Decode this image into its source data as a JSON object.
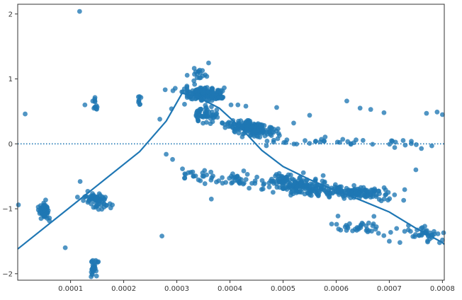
{
  "chart_data": {
    "type": "scatter",
    "title": "",
    "xlabel": "",
    "ylabel": "",
    "xlim": [
      5e-07,
      0.0008035
    ],
    "ylim": [
      -2.1,
      2.15
    ],
    "x_ticks": [
      0.0001,
      0.0002,
      0.0003,
      0.0004,
      0.0005,
      0.0006,
      0.0007,
      0.0008
    ],
    "x_tick_labels": [
      "0.0001",
      "0.0002",
      "0.0003",
      "0.0004",
      "0.0005",
      "0.0006",
      "0.0007",
      "0.0008"
    ],
    "y_ticks": [
      -2,
      -1,
      0,
      1,
      2
    ],
    "y_tick_labels": [
      "−2",
      "−1",
      "0",
      "1",
      "2"
    ],
    "grid": false,
    "legend": "none",
    "colors": {
      "points": "#1f77b4",
      "line": "#1f77b4",
      "reference": "#1f77b4",
      "axes": "#333333"
    },
    "reference_line": {
      "y": 0,
      "style": "dotted"
    },
    "fit_line": {
      "x": [
        0.0,
        0.00023,
        0.00028,
        0.00031,
        0.00034,
        0.00038,
        0.00042,
        0.00046,
        0.0005,
        0.00055,
        0.0006,
        0.00065,
        0.0007,
        0.00075,
        0.0008,
        0.0008035
      ],
      "y": [
        -1.62,
        -0.12,
        0.35,
        0.78,
        0.72,
        0.55,
        0.25,
        -0.1,
        -0.35,
        -0.55,
        -0.72,
        -0.88,
        -1.05,
        -1.3,
        -1.52,
        -1.55
      ]
    },
    "clusters": [
      {
        "cx": 5e-05,
        "cy": -1.05,
        "sx": 5e-06,
        "sy": 0.08,
        "n": 60,
        "tilt": -4000
      },
      {
        "cx": 0.00015,
        "cy": -0.88,
        "sx": 1.1e-05,
        "sy": 0.06,
        "n": 70,
        "tilt": -1800
      },
      {
        "cx": 0.000145,
        "cy": -1.9,
        "sx": 3.5e-06,
        "sy": 0.07,
        "n": 30,
        "tilt": 0
      },
      {
        "cx": 0.000146,
        "cy": 0.58,
        "sx": 3e-06,
        "sy": 0.05,
        "n": 12,
        "tilt": 0
      },
      {
        "cx": 0.00023,
        "cy": 0.68,
        "sx": 2e-06,
        "sy": 0.04,
        "n": 8,
        "tilt": 0
      },
      {
        "cx": 0.00035,
        "cy": 0.76,
        "sx": 1.8e-05,
        "sy": 0.05,
        "n": 160,
        "tilt": 0
      },
      {
        "cx": 0.000355,
        "cy": 0.46,
        "sx": 1.2e-05,
        "sy": 0.07,
        "n": 55,
        "tilt": 0
      },
      {
        "cx": 0.00034,
        "cy": 1.05,
        "sx": 8e-06,
        "sy": 0.07,
        "n": 18,
        "tilt": 0
      },
      {
        "cx": 0.00044,
        "cy": 0.24,
        "sx": 2.5e-05,
        "sy": 0.06,
        "n": 170,
        "tilt": -1000
      },
      {
        "cx": 0.00052,
        "cy": -0.62,
        "sx": 2.5e-05,
        "sy": 0.06,
        "n": 160,
        "tilt": -800
      },
      {
        "cx": 0.00063,
        "cy": -0.75,
        "sx": 4e-05,
        "sy": 0.05,
        "n": 160,
        "tilt": -400
      },
      {
        "cx": 0.00039,
        "cy": -0.52,
        "sx": 4.5e-05,
        "sy": 0.06,
        "n": 60,
        "tilt": -600
      },
      {
        "cx": 0.00066,
        "cy": -1.28,
        "sx": 4e-05,
        "sy": 0.06,
        "n": 40,
        "tilt": -500
      },
      {
        "cx": 0.00077,
        "cy": -1.38,
        "sx": 1.4e-05,
        "sy": 0.06,
        "n": 35,
        "tilt": -1000
      },
      {
        "cx": 0.00061,
        "cy": 0.03,
        "sx": 7e-05,
        "sy": 0.04,
        "n": 35,
        "tilt": 0
      }
    ],
    "outliers": [
      {
        "x": 0.000117,
        "y": 2.04
      },
      {
        "x": 1.45e-05,
        "y": 0.46
      },
      {
        "x": 5e-07,
        "y": -0.94
      },
      {
        "x": 9e-05,
        "y": -1.6
      },
      {
        "x": 0.000118,
        "y": -0.58
      },
      {
        "x": 0.000127,
        "y": 0.6
      },
      {
        "x": 0.000113,
        "y": -0.82
      },
      {
        "x": 0.000272,
        "y": -1.42
      },
      {
        "x": 0.000268,
        "y": 0.38
      },
      {
        "x": 0.00028,
        "y": -0.16
      },
      {
        "x": 0.000292,
        "y": -0.24
      },
      {
        "x": 0.00029,
        "y": 0.54
      },
      {
        "x": 0.000402,
        "y": 0.6
      },
      {
        "x": 0.000415,
        "y": 0.6
      },
      {
        "x": 0.00043,
        "y": 0.58
      },
      {
        "x": 0.000488,
        "y": 0.56
      },
      {
        "x": 0.00055,
        "y": 0.44
      },
      {
        "x": 0.00062,
        "y": 0.66
      },
      {
        "x": 0.000645,
        "y": 0.55
      },
      {
        "x": 0.000665,
        "y": 0.53
      },
      {
        "x": 0.00069,
        "y": 0.48
      },
      {
        "x": 0.00073,
        "y": -0.02
      },
      {
        "x": 0.00075,
        "y": -0.4
      },
      {
        "x": 0.00077,
        "y": 0.47
      },
      {
        "x": 0.00078,
        "y": -0.03
      },
      {
        "x": 0.0008,
        "y": 0.45
      },
      {
        "x": 0.00079,
        "y": 0.49
      },
      {
        "x": 0.0008,
        "y": -1.48
      },
      {
        "x": 0.00072,
        "y": -1.52
      },
      {
        "x": 0.0007,
        "y": -1.5
      },
      {
        "x": 0.000365,
        "y": -0.85
      },
      {
        "x": 0.00049,
        "y": 0.08
      },
      {
        "x": 0.000505,
        "y": 0.02
      },
      {
        "x": 0.00052,
        "y": 0.32
      }
    ]
  }
}
